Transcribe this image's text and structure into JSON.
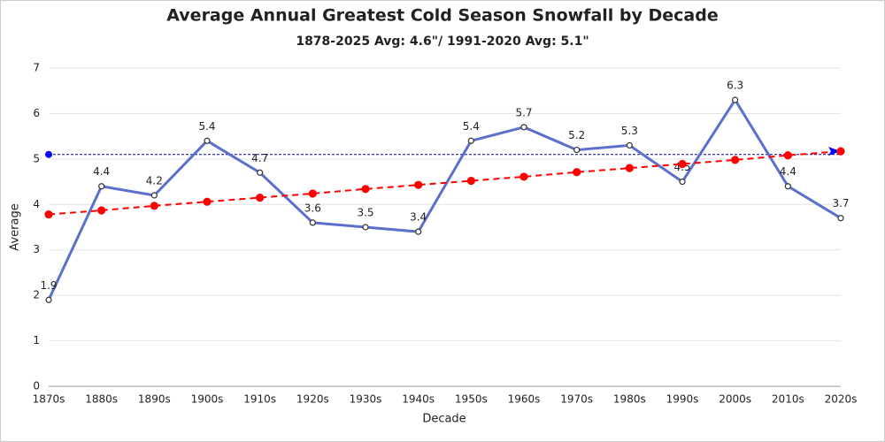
{
  "chart_data": {
    "type": "line",
    "title": "Average Annual Greatest Cold Season Snowfall by Decade",
    "subtitle": "1878-2025 Avg: 4.6\"/ 1991-2020 Avg: 5.1\"",
    "x_label": "Decade",
    "y_label": "Average",
    "categories": [
      "1870s",
      "1880s",
      "1890s",
      "1900s",
      "1910s",
      "1920s",
      "1930s",
      "1940s",
      "1950s",
      "1960s",
      "1970s",
      "1980s",
      "1990s",
      "2000s",
      "2010s",
      "2020s"
    ],
    "series": [
      {
        "color": "#5b6fcc",
        "values": [
          1.9,
          4.4,
          4.2,
          5.4,
          4.7,
          3.6,
          3.5,
          3.4,
          5.4,
          5.7,
          5.2,
          5.3,
          4.5,
          6.3,
          4.4,
          3.7
        ],
        "data_labels": true
      },
      {
        "color": "#ff0000",
        "dashed": true,
        "values": [
          3.78,
          3.87,
          3.97,
          4.06,
          4.15,
          4.24,
          4.34,
          4.43,
          4.52,
          4.61,
          4.71,
          4.8,
          4.89,
          4.98,
          5.08,
          5.17
        ]
      }
    ],
    "reference_line": {
      "value": 5.1,
      "color": "#00008b"
    },
    "ylim": [
      0,
      7
    ],
    "yticks": [
      0,
      1,
      2,
      3,
      4,
      5,
      6,
      7
    ],
    "grid": true
  }
}
